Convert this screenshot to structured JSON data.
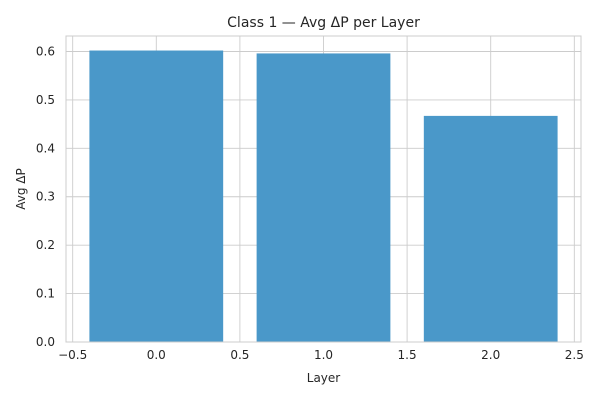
{
  "chart_data": {
    "type": "bar",
    "title": "Class 1 — Avg ΔP per Layer",
    "xlabel": "Layer",
    "ylabel": "Avg ΔP",
    "x": [
      0.0,
      1.0,
      2.0
    ],
    "values": [
      0.602,
      0.596,
      0.467
    ],
    "bar_width": 0.8,
    "xlim": [
      -0.54,
      2.54
    ],
    "ylim": [
      0.0,
      0.632
    ],
    "xticks": [
      -0.5,
      0.0,
      0.5,
      1.0,
      1.5,
      2.0,
      2.5
    ],
    "xtick_labels": [
      "−0.5",
      "0.0",
      "0.5",
      "1.0",
      "1.5",
      "2.0",
      "2.5"
    ],
    "yticks": [
      0.0,
      0.1,
      0.2,
      0.3,
      0.4,
      0.5,
      0.6
    ],
    "ytick_labels": [
      "0.0",
      "0.1",
      "0.2",
      "0.3",
      "0.4",
      "0.5",
      "0.6"
    ],
    "grid": true,
    "legend": "none",
    "colors": {
      "bar": "#4a98c9",
      "grid": "#cccccc",
      "spine": "#cccccc",
      "text": "#262626",
      "background": "#ffffff"
    }
  }
}
